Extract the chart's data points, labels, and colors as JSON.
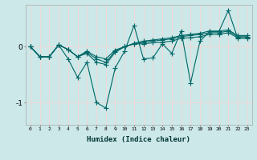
{
  "xlabel": "Humidex (Indice chaleur)",
  "x": [
    0,
    1,
    2,
    3,
    4,
    5,
    6,
    7,
    8,
    9,
    10,
    11,
    12,
    13,
    14,
    15,
    16,
    17,
    18,
    19,
    20,
    21,
    22,
    23
  ],
  "line1": [
    0.0,
    -0.18,
    -0.18,
    0.03,
    -0.22,
    -0.55,
    -0.28,
    -1.0,
    -1.1,
    -0.38,
    -0.08,
    0.38,
    -0.22,
    -0.2,
    0.05,
    -0.12,
    0.28,
    -0.65,
    0.1,
    0.27,
    0.27,
    0.65,
    0.15,
    0.15
  ],
  "line2": [
    0.0,
    -0.18,
    -0.18,
    0.03,
    -0.05,
    -0.18,
    -0.12,
    -0.28,
    -0.32,
    -0.1,
    0.0,
    0.05,
    0.05,
    0.07,
    0.08,
    0.1,
    0.15,
    0.16,
    0.18,
    0.22,
    0.22,
    0.25,
    0.16,
    0.16
  ],
  "line3": [
    0.0,
    -0.18,
    -0.18,
    0.03,
    -0.05,
    -0.18,
    -0.1,
    -0.22,
    -0.28,
    -0.08,
    0.0,
    0.05,
    0.08,
    0.1,
    0.12,
    0.14,
    0.18,
    0.2,
    0.22,
    0.25,
    0.25,
    0.28,
    0.18,
    0.18
  ],
  "line4": [
    0.0,
    -0.18,
    -0.18,
    0.03,
    -0.05,
    -0.18,
    -0.08,
    -0.18,
    -0.22,
    -0.06,
    0.0,
    0.06,
    0.1,
    0.12,
    0.14,
    0.16,
    0.2,
    0.22,
    0.24,
    0.28,
    0.28,
    0.3,
    0.2,
    0.2
  ],
  "color": "#006666",
  "bg_color": "#cce8e8",
  "grid_color": "#f0d8d8",
  "ylim": [
    -1.4,
    0.75
  ],
  "yticks": [
    -1,
    0
  ],
  "marker": "+",
  "lw": 0.8,
  "ms": 4
}
